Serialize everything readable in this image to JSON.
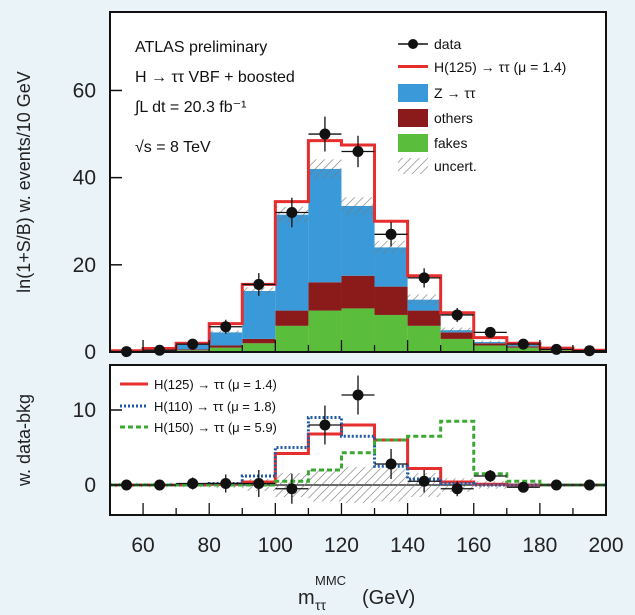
{
  "chart_data": [
    {
      "type": "bar",
      "stacked": true,
      "x_bin_edges": [
        50,
        60,
        70,
        80,
        90,
        100,
        110,
        120,
        130,
        140,
        150,
        160,
        170,
        180,
        190,
        200
      ],
      "ylabel": "ln(1+S/B) w. events/10 GeV",
      "ylim": [
        0,
        60
      ],
      "yticks": [
        0,
        20,
        40,
        60
      ],
      "annotations": {
        "experiment": "ATLAS preliminary",
        "channel": "H → ττ  VBF + boosted",
        "lumi": "∫L dt = 20.3 fb⁻¹",
        "energy": "√s = 8 TeV"
      },
      "legend_position": "top-right",
      "legend": {
        "data": "data",
        "signal": "H(125) → ττ  (μ = 1.4)",
        "ztt": "Z → ττ",
        "others": "others",
        "fakes": "fakes",
        "uncert": "uncert."
      },
      "series": [
        {
          "name": "fakes",
          "color": "#5bbd3c",
          "values": [
            0.1,
            0.2,
            0.4,
            1.0,
            2.0,
            6.0,
            9.5,
            10.0,
            8.5,
            6.0,
            3.0,
            1.5,
            1.0,
            0.4,
            0.2
          ]
        },
        {
          "name": "others",
          "color": "#8b1a1a",
          "values": [
            0.0,
            0.0,
            0.2,
            0.5,
            1.0,
            3.5,
            6.5,
            7.5,
            6.5,
            3.5,
            1.5,
            0.5,
            0.3,
            0.1,
            0.0
          ]
        },
        {
          "name": "Z → ττ",
          "color": "#3a9ad9",
          "values": [
            0.2,
            0.6,
            1.4,
            3.0,
            11.0,
            22.0,
            26.0,
            16.0,
            9.0,
            2.5,
            0.5,
            0.3,
            0.3,
            0.2,
            0.1
          ]
        },
        {
          "name": "H(125) → ττ  (μ = 1.4)",
          "color": "#e62e2e",
          "values": [
            0.0,
            0.0,
            0.0,
            2.0,
            1.5,
            3.0,
            6.5,
            14.0,
            6.0,
            5.5,
            4.0,
            1.0,
            0.4,
            0.2,
            0.1
          ]
        }
      ],
      "uncertainty_band": [
        0.2,
        0.2,
        0.3,
        0.4,
        0.8,
        1.8,
        2.2,
        2.0,
        1.5,
        1.2,
        0.6,
        0.3,
        0.2,
        0.1,
        0.1
      ],
      "data_points": {
        "x": [
          55,
          65,
          75,
          85,
          95,
          105,
          115,
          125,
          135,
          145,
          155,
          165,
          175,
          185,
          195
        ],
        "y": [
          0.1,
          0.4,
          1.8,
          5.8,
          15.5,
          32.0,
          50.0,
          46.0,
          27.0,
          17.0,
          8.5,
          4.5,
          1.8,
          0.6,
          0.3
        ],
        "yerr": [
          0.3,
          0.6,
          1.0,
          1.6,
          2.6,
          3.4,
          4.0,
          3.6,
          2.8,
          2.2,
          1.6,
          1.2,
          0.7,
          0.4,
          0.3
        ]
      }
    },
    {
      "type": "line",
      "step": true,
      "x_bin_edges": [
        50,
        60,
        70,
        80,
        90,
        100,
        110,
        120,
        130,
        140,
        150,
        160,
        170,
        180,
        190,
        200
      ],
      "xlabel": "m_ττ^MMC (GeV)",
      "xlabel_main": "m",
      "xlabel_sub": "ττ",
      "xlabel_sup": "MMC",
      "xlabel_unit": "(GeV)",
      "ylabel": "w. data-bkg",
      "xlim": [
        50,
        200
      ],
      "ylim": [
        -4,
        16
      ],
      "xticks": [
        60,
        80,
        100,
        120,
        140,
        160,
        180,
        200
      ],
      "yticks": [
        0,
        10
      ],
      "legend_position": "top-left",
      "series": [
        {
          "name": "H(125) → ττ  (μ = 1.4)",
          "color": "#e62e2e",
          "style": "solid",
          "values": [
            0,
            0,
            0,
            0.1,
            0.4,
            4.2,
            6.8,
            8.0,
            6.0,
            2.2,
            0.4,
            0.1,
            0,
            0,
            0
          ]
        },
        {
          "name": "H(110) → ττ  (μ = 1.8)",
          "color": "#1e5aa8",
          "style": "dotted",
          "values": [
            0,
            0,
            0,
            0.2,
            1.2,
            5.0,
            9.0,
            6.5,
            2.5,
            0.8,
            0.2,
            0,
            0,
            0,
            0
          ]
        },
        {
          "name": "H(150) → ττ  (μ = 5.9)",
          "color": "#3aa832",
          "style": "dashed",
          "values": [
            0,
            0,
            0,
            0,
            0,
            0.5,
            2.0,
            4.3,
            6.0,
            6.5,
            8.5,
            1.5,
            0.5,
            0,
            0
          ]
        }
      ],
      "uncertainty_band": [
        0.3,
        0.3,
        0.3,
        0.4,
        0.8,
        1.6,
        2.2,
        2.4,
        2.2,
        1.6,
        0.9,
        0.5,
        0.3,
        0.2,
        0.2
      ],
      "data_points": {
        "x": [
          55,
          65,
          75,
          85,
          95,
          105,
          115,
          125,
          135,
          145,
          155,
          165,
          175,
          185,
          195
        ],
        "y": [
          0,
          0,
          0.2,
          0.2,
          0.2,
          -0.5,
          8.0,
          12.0,
          2.8,
          0.5,
          -0.5,
          1.2,
          -0.3,
          0,
          0
        ],
        "yerr": [
          0.3,
          0.5,
          0.8,
          1.2,
          1.8,
          2.0,
          2.6,
          2.6,
          2.0,
          1.5,
          1.0,
          0.8,
          0.5,
          0.4,
          0.3
        ]
      }
    }
  ]
}
